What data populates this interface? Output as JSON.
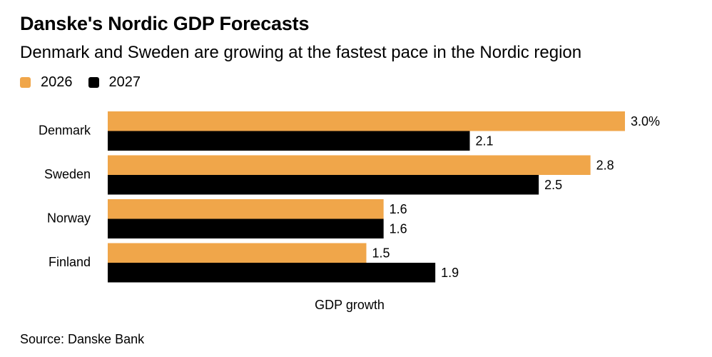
{
  "header": {
    "title": "Danske's Nordic GDP Forecasts",
    "subtitle": "Denmark and Sweden are growing at the fastest pace in the Nordic region"
  },
  "legend": [
    {
      "label": "2026",
      "color": "#F0A64A"
    },
    {
      "label": "2027",
      "color": "#000000"
    }
  ],
  "footer": {
    "source": "Source: Danske Bank"
  },
  "chart_data": {
    "type": "bar",
    "orientation": "horizontal",
    "title": "Danske's Nordic GDP Forecasts",
    "subtitle": "Denmark and Sweden are growing at the fastest pace in the Nordic region",
    "categories": [
      "Denmark",
      "Sweden",
      "Norway",
      "Finland"
    ],
    "series": [
      {
        "name": "2026",
        "color": "#F0A64A",
        "values": [
          3.0,
          2.8,
          1.6,
          1.5
        ],
        "labels": [
          "3.0%",
          "2.8",
          "1.6",
          "1.5"
        ]
      },
      {
        "name": "2027",
        "color": "#000000",
        "values": [
          2.1,
          2.5,
          1.6,
          1.9
        ],
        "labels": [
          "2.1",
          "2.5",
          "1.6",
          "1.9"
        ]
      }
    ],
    "xlabel": "GDP growth",
    "ylabel": "",
    "xlim": [
      0,
      3.0
    ],
    "grid": false,
    "legend_position": "top-left",
    "source": "Source: Danske Bank"
  }
}
